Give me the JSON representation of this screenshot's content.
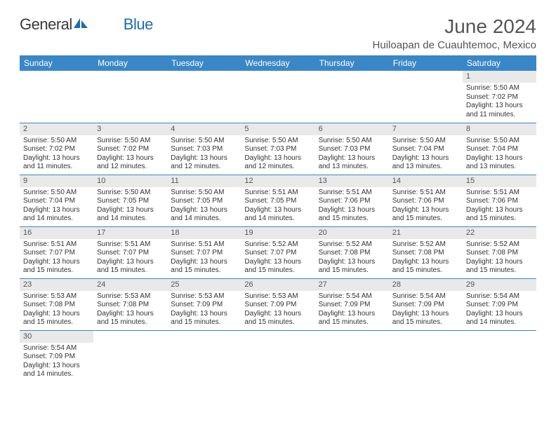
{
  "brand": {
    "part1": "General",
    "part2": "Blue"
  },
  "title": "June 2024",
  "location": "Huiloapan de Cuauhtemoc, Mexico",
  "colors": {
    "header_bg": "#3a87c8",
    "header_text": "#ffffff",
    "daynum_bg": "#e9e9e9",
    "daynum_text": "#555555",
    "body_text": "#333333",
    "rule": "#3a87c8",
    "title_text": "#555555",
    "brand_dark": "#3a3a3a",
    "brand_blue": "#1a6bb0"
  },
  "weekdays": [
    "Sunday",
    "Monday",
    "Tuesday",
    "Wednesday",
    "Thursday",
    "Friday",
    "Saturday"
  ],
  "weeks": [
    [
      null,
      null,
      null,
      null,
      null,
      null,
      {
        "n": "1",
        "sr": "Sunrise: 5:50 AM",
        "ss": "Sunset: 7:02 PM",
        "dl1": "Daylight: 13 hours",
        "dl2": "and 11 minutes."
      }
    ],
    [
      {
        "n": "2",
        "sr": "Sunrise: 5:50 AM",
        "ss": "Sunset: 7:02 PM",
        "dl1": "Daylight: 13 hours",
        "dl2": "and 11 minutes."
      },
      {
        "n": "3",
        "sr": "Sunrise: 5:50 AM",
        "ss": "Sunset: 7:02 PM",
        "dl1": "Daylight: 13 hours",
        "dl2": "and 12 minutes."
      },
      {
        "n": "4",
        "sr": "Sunrise: 5:50 AM",
        "ss": "Sunset: 7:03 PM",
        "dl1": "Daylight: 13 hours",
        "dl2": "and 12 minutes."
      },
      {
        "n": "5",
        "sr": "Sunrise: 5:50 AM",
        "ss": "Sunset: 7:03 PM",
        "dl1": "Daylight: 13 hours",
        "dl2": "and 12 minutes."
      },
      {
        "n": "6",
        "sr": "Sunrise: 5:50 AM",
        "ss": "Sunset: 7:03 PM",
        "dl1": "Daylight: 13 hours",
        "dl2": "and 13 minutes."
      },
      {
        "n": "7",
        "sr": "Sunrise: 5:50 AM",
        "ss": "Sunset: 7:04 PM",
        "dl1": "Daylight: 13 hours",
        "dl2": "and 13 minutes."
      },
      {
        "n": "8",
        "sr": "Sunrise: 5:50 AM",
        "ss": "Sunset: 7:04 PM",
        "dl1": "Daylight: 13 hours",
        "dl2": "and 13 minutes."
      }
    ],
    [
      {
        "n": "9",
        "sr": "Sunrise: 5:50 AM",
        "ss": "Sunset: 7:04 PM",
        "dl1": "Daylight: 13 hours",
        "dl2": "and 14 minutes."
      },
      {
        "n": "10",
        "sr": "Sunrise: 5:50 AM",
        "ss": "Sunset: 7:05 PM",
        "dl1": "Daylight: 13 hours",
        "dl2": "and 14 minutes."
      },
      {
        "n": "11",
        "sr": "Sunrise: 5:50 AM",
        "ss": "Sunset: 7:05 PM",
        "dl1": "Daylight: 13 hours",
        "dl2": "and 14 minutes."
      },
      {
        "n": "12",
        "sr": "Sunrise: 5:51 AM",
        "ss": "Sunset: 7:05 PM",
        "dl1": "Daylight: 13 hours",
        "dl2": "and 14 minutes."
      },
      {
        "n": "13",
        "sr": "Sunrise: 5:51 AM",
        "ss": "Sunset: 7:06 PM",
        "dl1": "Daylight: 13 hours",
        "dl2": "and 15 minutes."
      },
      {
        "n": "14",
        "sr": "Sunrise: 5:51 AM",
        "ss": "Sunset: 7:06 PM",
        "dl1": "Daylight: 13 hours",
        "dl2": "and 15 minutes."
      },
      {
        "n": "15",
        "sr": "Sunrise: 5:51 AM",
        "ss": "Sunset: 7:06 PM",
        "dl1": "Daylight: 13 hours",
        "dl2": "and 15 minutes."
      }
    ],
    [
      {
        "n": "16",
        "sr": "Sunrise: 5:51 AM",
        "ss": "Sunset: 7:07 PM",
        "dl1": "Daylight: 13 hours",
        "dl2": "and 15 minutes."
      },
      {
        "n": "17",
        "sr": "Sunrise: 5:51 AM",
        "ss": "Sunset: 7:07 PM",
        "dl1": "Daylight: 13 hours",
        "dl2": "and 15 minutes."
      },
      {
        "n": "18",
        "sr": "Sunrise: 5:51 AM",
        "ss": "Sunset: 7:07 PM",
        "dl1": "Daylight: 13 hours",
        "dl2": "and 15 minutes."
      },
      {
        "n": "19",
        "sr": "Sunrise: 5:52 AM",
        "ss": "Sunset: 7:07 PM",
        "dl1": "Daylight: 13 hours",
        "dl2": "and 15 minutes."
      },
      {
        "n": "20",
        "sr": "Sunrise: 5:52 AM",
        "ss": "Sunset: 7:08 PM",
        "dl1": "Daylight: 13 hours",
        "dl2": "and 15 minutes."
      },
      {
        "n": "21",
        "sr": "Sunrise: 5:52 AM",
        "ss": "Sunset: 7:08 PM",
        "dl1": "Daylight: 13 hours",
        "dl2": "and 15 minutes."
      },
      {
        "n": "22",
        "sr": "Sunrise: 5:52 AM",
        "ss": "Sunset: 7:08 PM",
        "dl1": "Daylight: 13 hours",
        "dl2": "and 15 minutes."
      }
    ],
    [
      {
        "n": "23",
        "sr": "Sunrise: 5:53 AM",
        "ss": "Sunset: 7:08 PM",
        "dl1": "Daylight: 13 hours",
        "dl2": "and 15 minutes."
      },
      {
        "n": "24",
        "sr": "Sunrise: 5:53 AM",
        "ss": "Sunset: 7:08 PM",
        "dl1": "Daylight: 13 hours",
        "dl2": "and 15 minutes."
      },
      {
        "n": "25",
        "sr": "Sunrise: 5:53 AM",
        "ss": "Sunset: 7:09 PM",
        "dl1": "Daylight: 13 hours",
        "dl2": "and 15 minutes."
      },
      {
        "n": "26",
        "sr": "Sunrise: 5:53 AM",
        "ss": "Sunset: 7:09 PM",
        "dl1": "Daylight: 13 hours",
        "dl2": "and 15 minutes."
      },
      {
        "n": "27",
        "sr": "Sunrise: 5:54 AM",
        "ss": "Sunset: 7:09 PM",
        "dl1": "Daylight: 13 hours",
        "dl2": "and 15 minutes."
      },
      {
        "n": "28",
        "sr": "Sunrise: 5:54 AM",
        "ss": "Sunset: 7:09 PM",
        "dl1": "Daylight: 13 hours",
        "dl2": "and 15 minutes."
      },
      {
        "n": "29",
        "sr": "Sunrise: 5:54 AM",
        "ss": "Sunset: 7:09 PM",
        "dl1": "Daylight: 13 hours",
        "dl2": "and 14 minutes."
      }
    ],
    [
      {
        "n": "30",
        "sr": "Sunrise: 5:54 AM",
        "ss": "Sunset: 7:09 PM",
        "dl1": "Daylight: 13 hours",
        "dl2": "and 14 minutes."
      },
      null,
      null,
      null,
      null,
      null,
      null
    ]
  ]
}
